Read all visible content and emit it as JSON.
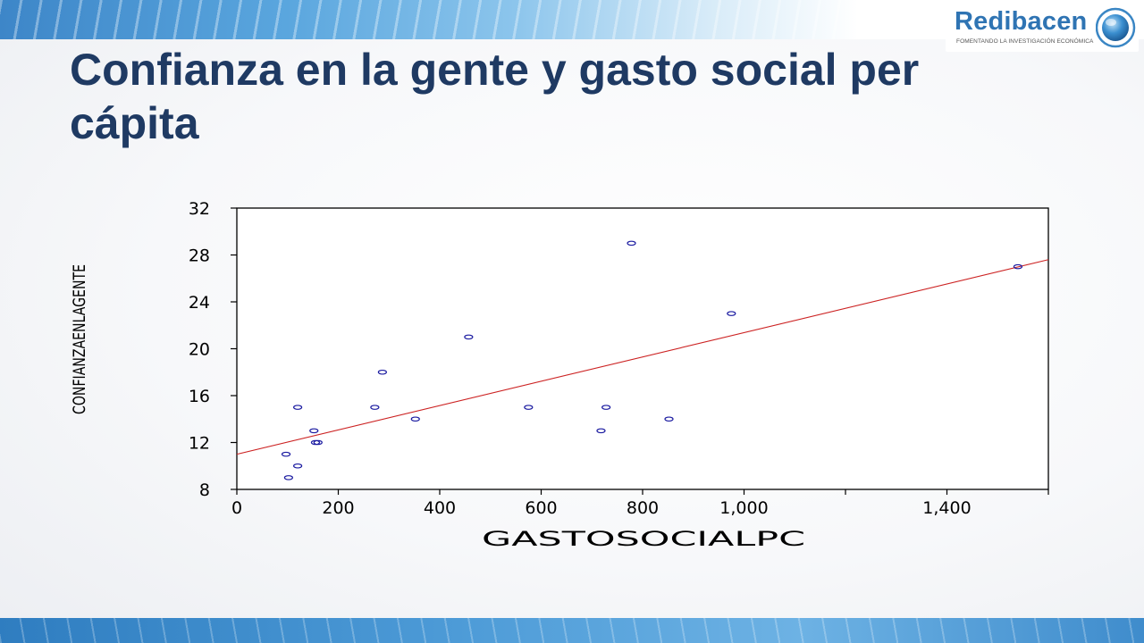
{
  "slide": {
    "title": "Confianza en la gente y gasto social per cápita"
  },
  "logo": {
    "name": "Redibacen",
    "tagline": "FOMENTANDO LA INVESTIGACIÓN ECONÓMICA"
  },
  "chart_data": {
    "type": "scatter",
    "title": "",
    "xlabel": "GASTOSOCIALPC",
    "ylabel": "CONFIANZAENLAGENTE",
    "xlim": [
      0,
      1600
    ],
    "ylim": [
      8,
      32
    ],
    "x_ticks": [
      0,
      200,
      400,
      600,
      800,
      1000,
      1400
    ],
    "x_tick_labels": [
      "0",
      "200",
      "400",
      "600",
      "800",
      "1,000",
      "1,400"
    ],
    "y_ticks": [
      8,
      12,
      16,
      20,
      24,
      28,
      32
    ],
    "points": [
      {
        "x": 97,
        "y": 11
      },
      {
        "x": 102,
        "y": 9
      },
      {
        "x": 120,
        "y": 15
      },
      {
        "x": 120,
        "y": 10
      },
      {
        "x": 152,
        "y": 13
      },
      {
        "x": 155,
        "y": 12
      },
      {
        "x": 160,
        "y": 12
      },
      {
        "x": 272,
        "y": 15
      },
      {
        "x": 287,
        "y": 18
      },
      {
        "x": 352,
        "y": 14
      },
      {
        "x": 457,
        "y": 21
      },
      {
        "x": 575,
        "y": 15
      },
      {
        "x": 718,
        "y": 13
      },
      {
        "x": 728,
        "y": 15
      },
      {
        "x": 778,
        "y": 29
      },
      {
        "x": 852,
        "y": 14
      },
      {
        "x": 975,
        "y": 23
      },
      {
        "x": 1540,
        "y": 27
      }
    ],
    "fit_line": {
      "x": [
        0,
        1600
      ],
      "y": [
        11.0,
        27.6
      ]
    },
    "point_color": "#1a1aa0",
    "line_color": "#cc2222",
    "grid": false
  }
}
